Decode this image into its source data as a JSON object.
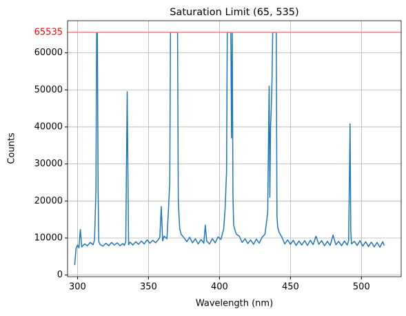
{
  "chart_data": {
    "type": "line",
    "title": "Saturation Limit (65, 535)",
    "x_label": "Wavelength (nm)",
    "y_label": "Counts",
    "saturation": 65535,
    "saturation_color": "#ff7f7f",
    "saturation_label_color": "#ff0000",
    "color": "#1f77b4",
    "grid": true,
    "xlim": [
      293,
      528
    ],
    "ylim": [
      -440,
      68680
    ],
    "xticks": [
      300,
      350,
      400,
      450,
      500
    ],
    "yticks": [
      0,
      10000,
      20000,
      30000,
      40000,
      50000,
      60000
    ],
    "x": [
      298,
      299,
      300,
      301,
      302,
      303,
      305,
      307,
      309,
      311,
      312,
      313,
      313.5,
      314,
      314.5,
      315,
      316,
      318,
      320,
      322,
      324,
      326,
      328,
      330,
      332,
      333,
      334,
      335,
      336,
      337,
      339,
      341,
      343,
      345,
      347,
      349,
      351,
      353,
      355,
      357,
      358,
      359,
      360,
      361,
      363,
      364,
      365,
      365.5,
      370,
      370.5,
      371,
      372,
      373,
      375,
      377,
      379,
      381,
      383,
      385,
      387,
      389,
      390,
      391,
      393,
      395,
      397,
      399,
      401,
      402,
      403,
      404,
      405,
      405.5,
      408,
      408.5,
      409,
      409.5,
      410,
      411,
      412,
      414,
      416,
      418,
      420,
      422,
      424,
      426,
      428,
      430,
      432,
      433,
      434,
      434.5,
      435,
      435.5,
      436,
      436.5,
      437,
      437.5,
      440,
      440.5,
      441,
      442,
      444,
      446,
      448,
      450,
      452,
      454,
      456,
      458,
      460,
      462,
      464,
      466,
      468,
      470,
      472,
      474,
      476,
      478,
      480,
      482,
      484,
      486,
      488,
      490,
      491,
      492,
      492.5,
      493,
      495,
      497,
      499,
      501,
      503,
      505,
      507,
      509,
      511,
      513,
      515,
      516
    ],
    "values": [
      2700,
      7200,
      8100,
      7300,
      12300,
      7600,
      8400,
      7900,
      8800,
      8200,
      9500,
      23000,
      65535,
      65535,
      24000,
      9000,
      8200,
      7800,
      8600,
      7900,
      8800,
      8100,
      8700,
      7900,
      8500,
      8000,
      9000,
      49500,
      8200,
      8900,
      8100,
      9000,
      8300,
      9200,
      8400,
      9500,
      8600,
      9400,
      8700,
      9600,
      10200,
      18500,
      9200,
      10500,
      9800,
      17000,
      25000,
      65535,
      65535,
      65535,
      20000,
      12500,
      11000,
      10100,
      9000,
      10200,
      8700,
      9800,
      8400,
      9600,
      8600,
      13500,
      9200,
      8400,
      9800,
      8700,
      10300,
      9600,
      11000,
      12500,
      18000,
      28000,
      65535,
      65535,
      37000,
      65535,
      22000,
      13500,
      12000,
      11000,
      10500,
      8800,
      9800,
      8500,
      9500,
      8300,
      9700,
      8600,
      10200,
      11000,
      13800,
      17000,
      35000,
      51000,
      21000,
      40000,
      45000,
      52000,
      65535,
      65535,
      16000,
      13000,
      11500,
      10200,
      8400,
      9500,
      8300,
      9400,
      8000,
      9200,
      8100,
      9300,
      8000,
      9400,
      8200,
      10500,
      8300,
      9300,
      7900,
      9100,
      8000,
      10800,
      8200,
      9100,
      7900,
      9200,
      8100,
      9300,
      40800,
      12000,
      8400,
      9100,
      8000,
      9300,
      7800,
      9000,
      7700,
      8900,
      7600,
      8800,
      7500,
      9000,
      8000
    ]
  }
}
